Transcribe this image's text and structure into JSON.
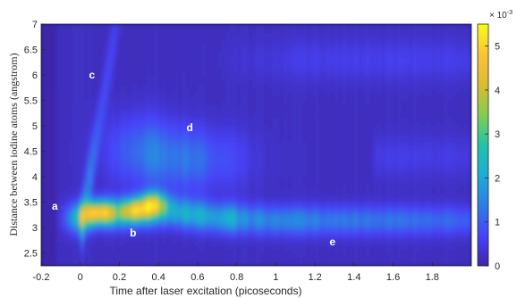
{
  "chart_data": {
    "type": "heatmap",
    "xlabel": "Time after laser excitation (picoseconds)",
    "ylabel": "Distance between iodine atoms (angstrom)",
    "xlim": [
      -0.2,
      2.0
    ],
    "ylim": [
      2.25,
      7.0
    ],
    "x_ticks": [
      "-0.2",
      "0",
      "0.2",
      "0.4",
      "0.6",
      "0.8",
      "1",
      "1.2",
      "1.4",
      "1.6",
      "1.8"
    ],
    "x_tick_values": [
      -0.2,
      0,
      0.2,
      0.4,
      0.6,
      0.8,
      1.0,
      1.2,
      1.4,
      1.6,
      1.8
    ],
    "y_ticks": [
      "2.5",
      "3",
      "3.5",
      "4",
      "4.5",
      "5",
      "5.5",
      "6",
      "6.5",
      "7"
    ],
    "y_tick_values": [
      2.5,
      3,
      3.5,
      4,
      4.5,
      5,
      5.5,
      6,
      6.5,
      7
    ],
    "colorbar": {
      "scale_label": "× 10",
      "scale_exponent": "-3",
      "ticks": [
        "0",
        "1",
        "2",
        "3",
        "4",
        "5"
      ],
      "tick_values": [
        0,
        1,
        2,
        3,
        4,
        5
      ],
      "range": [
        0,
        5.5
      ],
      "colormap": [
        "#3e26a8",
        "#4743f8",
        "#2e7de5",
        "#1dacd6",
        "#21c4a6",
        "#85cb54",
        "#dabc32",
        "#fcc339",
        "#f9fb15"
      ]
    },
    "background_color": "#0a1a7a",
    "annotations": [
      {
        "text": "a",
        "x": -0.13,
        "y": 3.42
      },
      {
        "text": "b",
        "x": 0.27,
        "y": 2.9
      },
      {
        "text": "c",
        "x": 0.06,
        "y": 6.0
      },
      {
        "text": "d",
        "x": 0.56,
        "y": 4.97
      },
      {
        "text": "e",
        "x": 1.29,
        "y": 2.72
      }
    ],
    "features": {
      "ridge": {
        "x": [
          0.0,
          0.1,
          0.2,
          0.3,
          0.4,
          0.5,
          0.7,
          1.0,
          1.4,
          1.8,
          2.0
        ],
        "y": [
          3.2,
          3.3,
          3.28,
          3.3,
          3.35,
          3.3,
          3.2,
          3.15,
          3.15,
          3.15,
          3.15
        ]
      },
      "peaks": [
        {
          "x": 0.1,
          "y": 3.3,
          "value": 5.2
        },
        {
          "x": 0.28,
          "y": 3.35,
          "value": 5.0
        },
        {
          "x": 0.37,
          "y": 3.5,
          "value": 4.0
        }
      ]
    }
  }
}
